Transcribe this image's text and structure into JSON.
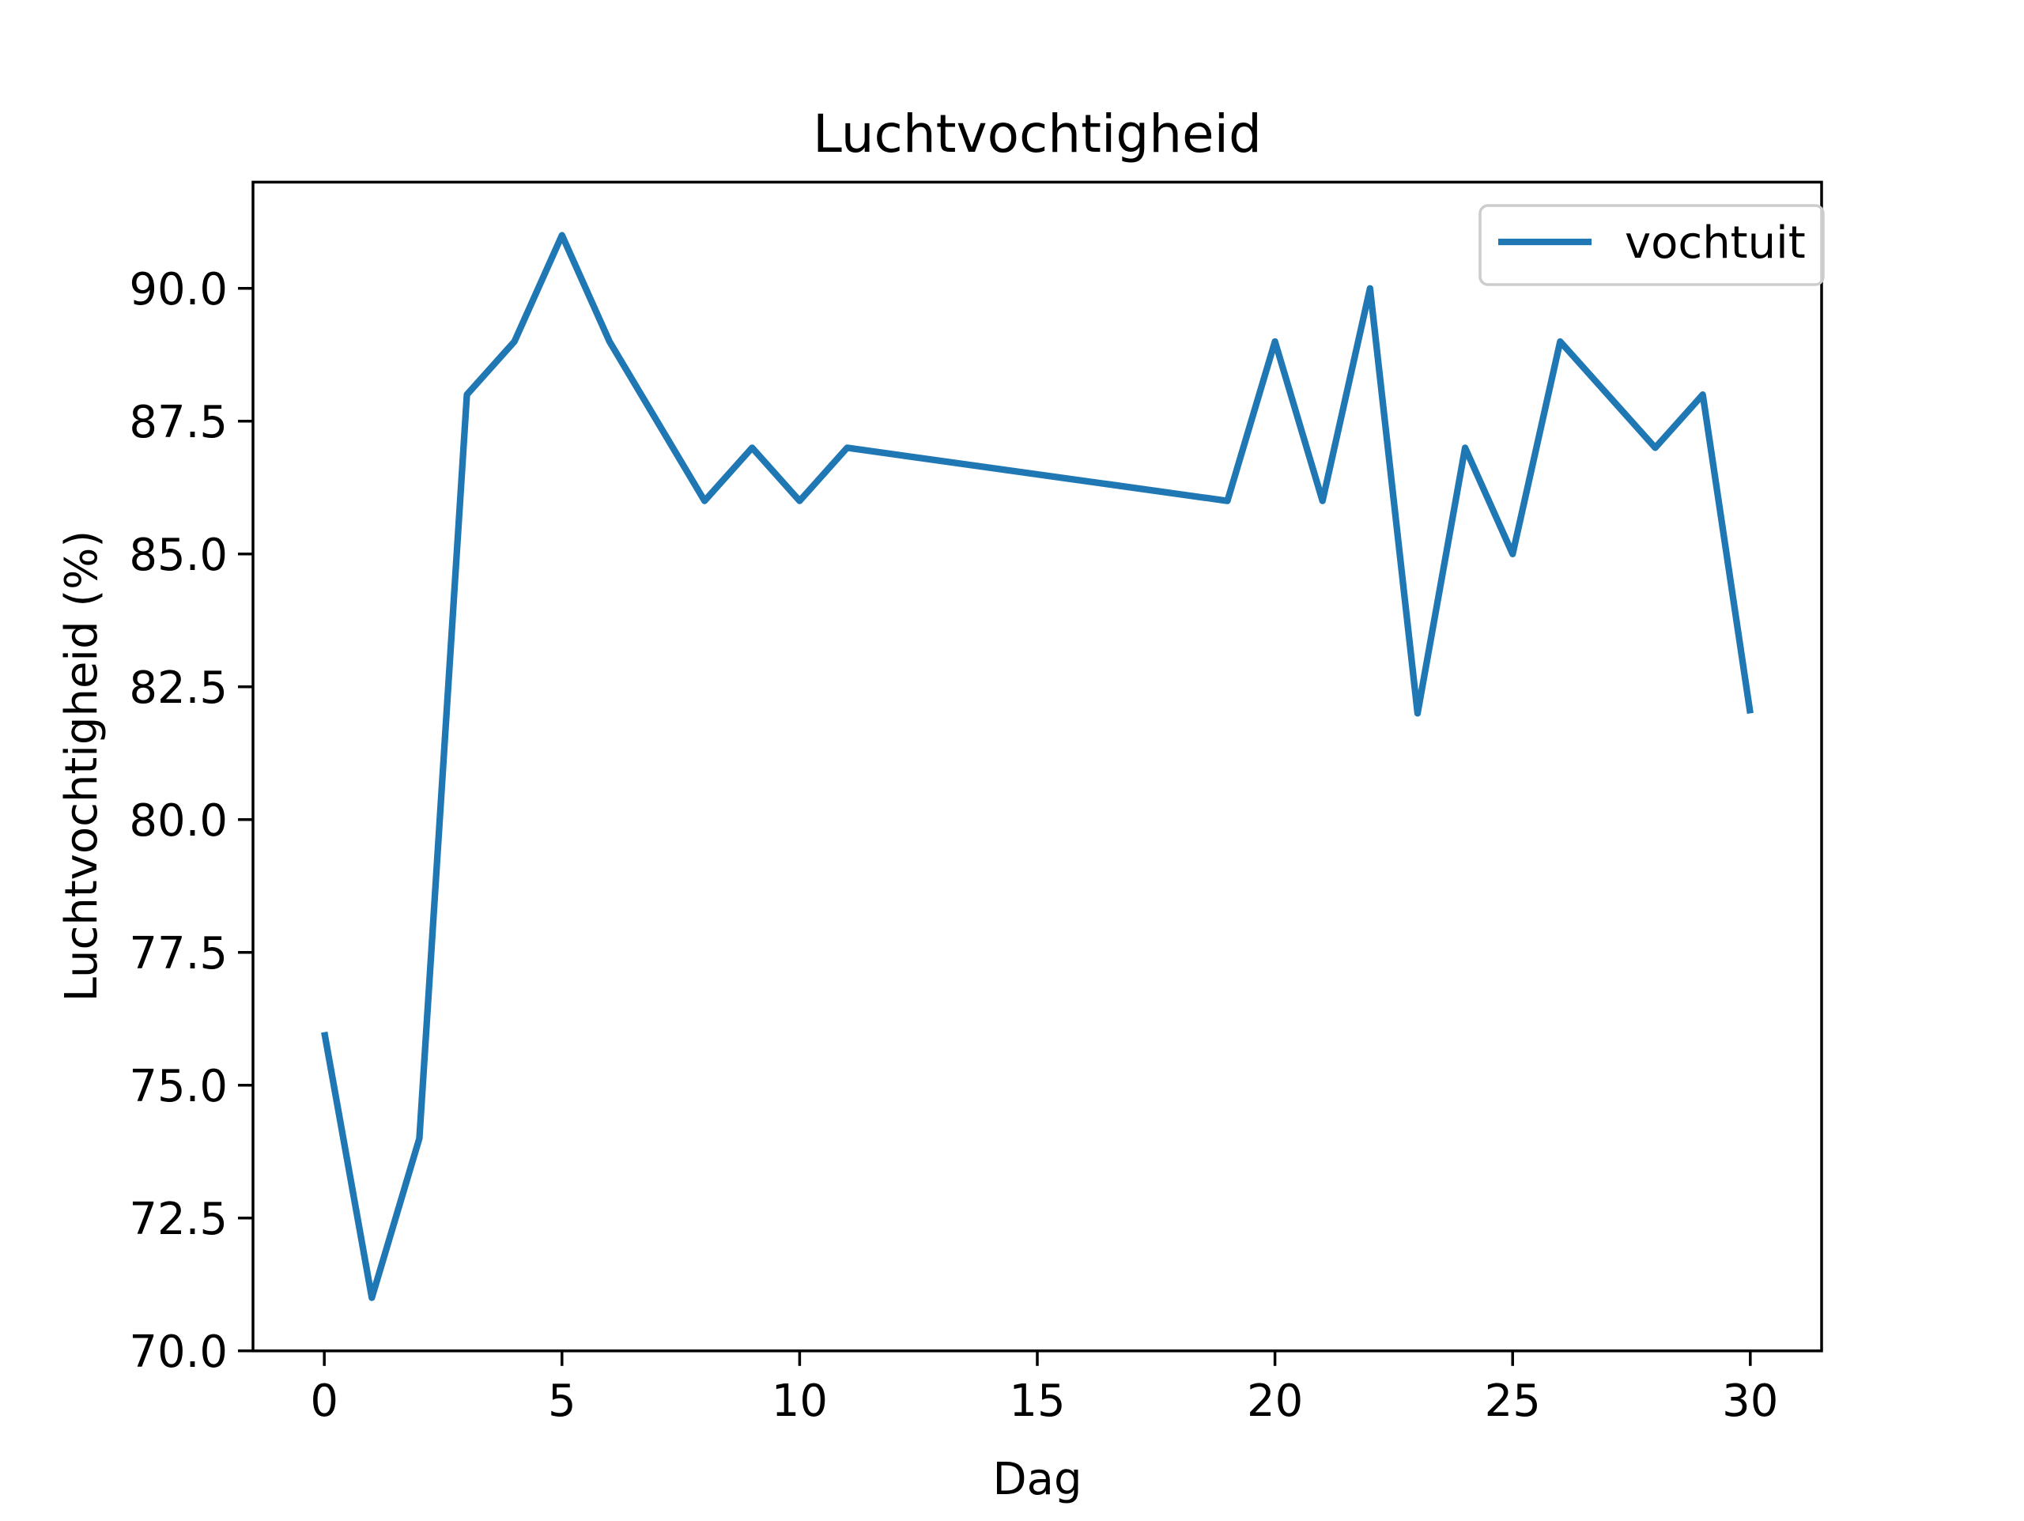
{
  "chart_data": {
    "type": "line",
    "title": "Luchtvochtigheid",
    "xlabel": "Dag",
    "ylabel": "Luchtvochtigheid (%)",
    "xlim": [
      -1.5,
      31.5
    ],
    "ylim": [
      70,
      92
    ],
    "xticks": [
      "0",
      "5",
      "10",
      "15",
      "20",
      "25",
      "30"
    ],
    "yticks": [
      "70.0",
      "72.5",
      "75.0",
      "77.5",
      "80.0",
      "82.5",
      "85.0",
      "87.5",
      "90.0"
    ],
    "grid": false,
    "legend_position": "top-right",
    "series": [
      {
        "name": "vochtuit",
        "color": "#1f77b4",
        "x": [
          0,
          1,
          2,
          3,
          4,
          5,
          6,
          8,
          9,
          10,
          11,
          19,
          20,
          21,
          22,
          23,
          24,
          25,
          26,
          28,
          29,
          30
        ],
        "y": [
          76,
          71,
          74,
          88,
          89,
          91,
          89,
          86,
          87,
          86,
          87,
          86,
          89,
          86,
          90,
          82,
          87,
          85,
          89,
          87,
          88,
          82
        ]
      }
    ]
  }
}
